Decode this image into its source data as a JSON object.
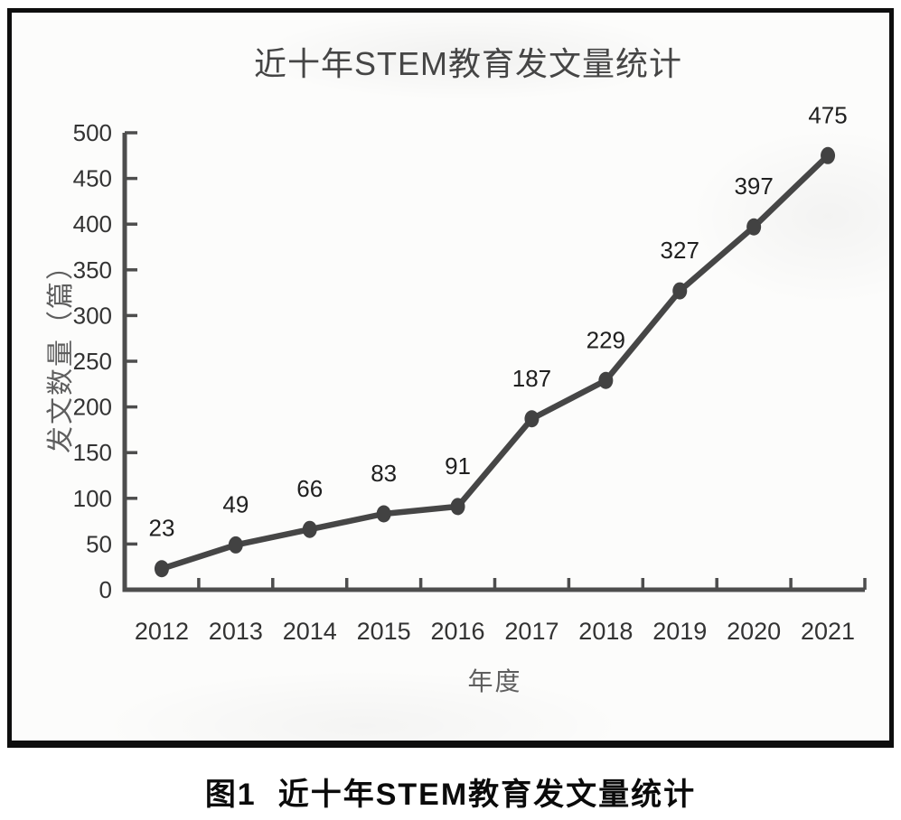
{
  "figure": {
    "caption_label": "图1",
    "caption_text": "近十年STEM教育发文量统计"
  },
  "chart_data": {
    "type": "line",
    "title": "近十年STEM教育发文量统计",
    "xlabel": "年度",
    "ylabel": "发文数量（篇）",
    "categories": [
      "2012",
      "2013",
      "2014",
      "2015",
      "2016",
      "2017",
      "2018",
      "2019",
      "2020",
      "2021"
    ],
    "series": [
      {
        "name": "发文数量",
        "values": [
          23,
          49,
          66,
          83,
          91,
          187,
          229,
          327,
          397,
          475
        ]
      }
    ],
    "data_labels": true,
    "ylim": [
      0,
      500
    ],
    "yticks": [
      0,
      50,
      100,
      150,
      200,
      250,
      300,
      350,
      400,
      450,
      500
    ],
    "grid": false,
    "legend_position": "none",
    "marker": "ellipse",
    "colors": {
      "line": "#464646",
      "marker": "#424242",
      "axis": "#4d4d4d",
      "tick_label": "#333333",
      "data_label": "#1f1f1f",
      "title": "#454545",
      "axis_title": "#5e5e5e",
      "caption": "#0b0b0b",
      "frame_border": "#0e0e0e",
      "background": "#fcfcfb"
    }
  }
}
